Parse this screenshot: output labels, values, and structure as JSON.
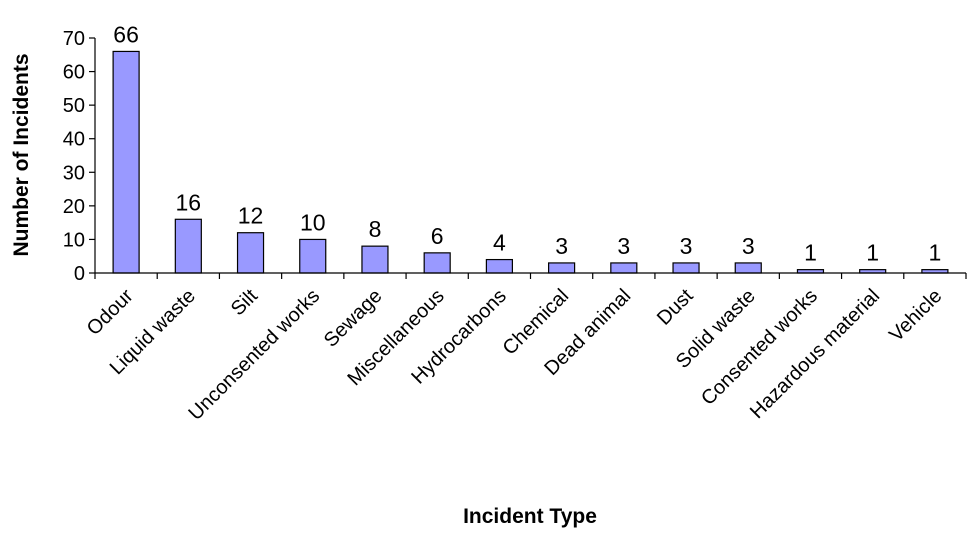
{
  "chart_data": {
    "type": "bar",
    "title": "",
    "xlabel": "Incident Type",
    "ylabel": "Number of Incidents",
    "categories": [
      "Odour",
      "Liquid waste",
      "Silt",
      "Unconsented works",
      "Sewage",
      "Miscellaneous",
      "Hydrocarbons",
      "Chemical",
      "Dead animal",
      "Dust",
      "Solid waste",
      "Consented works",
      "Hazardous material",
      "Vehicle"
    ],
    "values": [
      66,
      16,
      12,
      10,
      8,
      6,
      4,
      3,
      3,
      3,
      3,
      1,
      1,
      1
    ],
    "data_labels": [
      "66",
      "16",
      "12",
      "10",
      "8",
      "6",
      "4",
      "3",
      "3",
      "3",
      "3",
      "1",
      "1",
      "1"
    ],
    "ylim": [
      0,
      70
    ],
    "yticks": [
      "0",
      "10",
      "20",
      "30",
      "40",
      "50",
      "60",
      "70"
    ],
    "grid": false,
    "legend": "none",
    "bar_color": "#9999ff",
    "edge_color": "#000000"
  }
}
